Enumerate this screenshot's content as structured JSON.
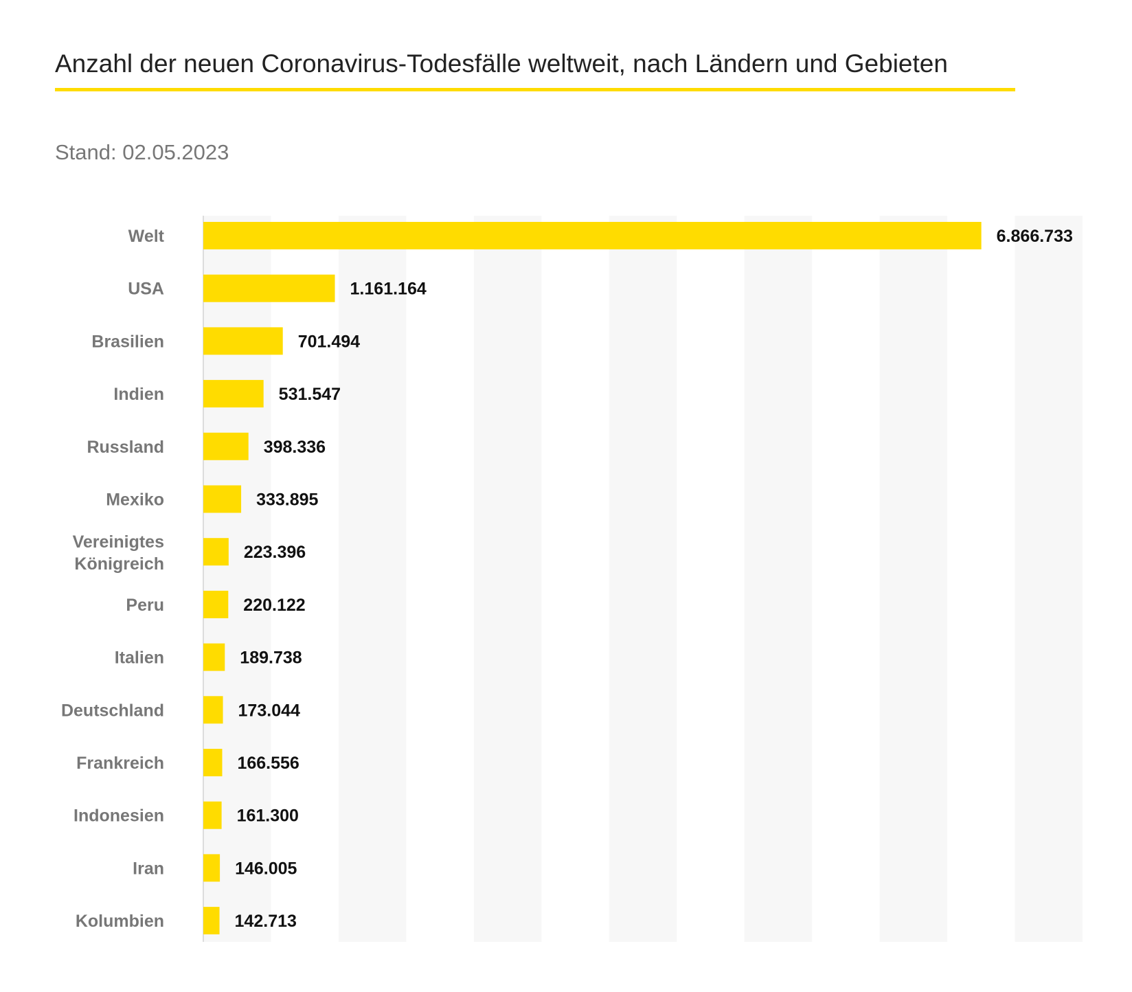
{
  "chart_data": {
    "type": "bar",
    "orientation": "horizontal",
    "title": "Anzahl der neuen Coronavirus-Todesfälle weltweit, nach Ländern und Gebieten",
    "subtitle": "Stand: 02.05.2023",
    "categories": [
      "Welt",
      "USA",
      "Brasilien",
      "Indien",
      "Russland",
      "Mexiko",
      "Vereinigtes Königreich",
      "Peru",
      "Italien",
      "Deutschland",
      "Frankreich",
      "Indonesien",
      "Iran",
      "Kolumbien"
    ],
    "values": [
      6866733,
      1161164,
      701494,
      531547,
      398336,
      333895,
      223396,
      220122,
      189738,
      173044,
      166556,
      161300,
      146005,
      142713
    ],
    "value_labels": [
      "6.866.733",
      "1.161.164",
      "701.494",
      "531.547",
      "398.336",
      "333.895",
      "223.396",
      "220.122",
      "189.738",
      "173.044",
      "166.556",
      "161.300",
      "146.005",
      "142.713"
    ],
    "xlim": [
      0,
      7760000
    ],
    "grid": "alternating vertical bands",
    "colors": {
      "bar": "#ffdc00",
      "band": "#f7f7f7",
      "label": "#777777",
      "value": "#111111"
    }
  }
}
